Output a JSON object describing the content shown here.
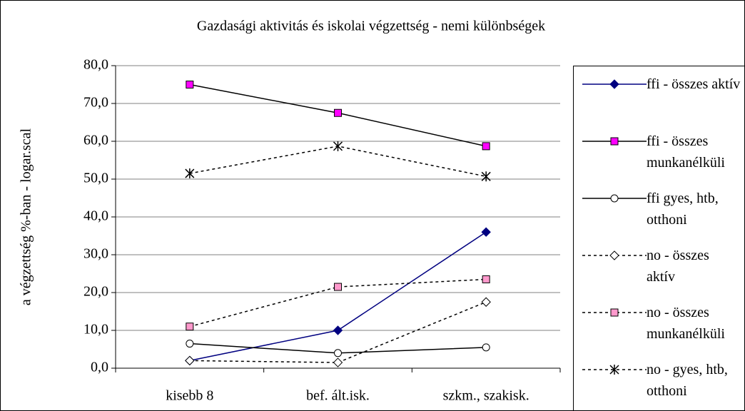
{
  "chart_data": {
    "type": "line",
    "title": "Gazdasági aktivitás és iskolai végzettség - nemi különbségek",
    "y_label": "a végzettség %-ban - logar.scal",
    "categories": [
      "kisebb 8",
      "bef. ált.isk.",
      "szkm., szakisk."
    ],
    "ylim": [
      0,
      80
    ],
    "yticks": [
      {
        "value": 0,
        "label": "0,0"
      },
      {
        "value": 10,
        "label": "10,0"
      },
      {
        "value": 20,
        "label": "20,0"
      },
      {
        "value": 30,
        "label": "30,0"
      },
      {
        "value": 40,
        "label": "40,0"
      },
      {
        "value": 50,
        "label": "50,0"
      },
      {
        "value": 60,
        "label": "60,0"
      },
      {
        "value": 70,
        "label": "70,0"
      },
      {
        "value": 80,
        "label": "80,0"
      }
    ],
    "grid": true,
    "legend": "right",
    "series": [
      {
        "name": "ffi - összes aktív",
        "color": "#000080",
        "dashed": false,
        "marker": "diamond",
        "marker_fill": "#000080",
        "values": [
          2.0,
          10.0,
          36.0
        ]
      },
      {
        "name": "ffi - összes munkanélküli",
        "color": "#000000",
        "dashed": false,
        "marker": "square",
        "marker_fill": "#ff00ff",
        "values": [
          75.0,
          67.5,
          58.7
        ]
      },
      {
        "name": "ffi gyes, htb, otthoni",
        "color": "#000000",
        "dashed": false,
        "marker": "circle",
        "marker_fill": "#ffffff",
        "values": [
          6.5,
          4.0,
          5.5
        ]
      },
      {
        "name": "no - összes aktív",
        "color": "#000000",
        "dashed": true,
        "marker": "diamond",
        "marker_fill": "#ffffff",
        "values": [
          2.0,
          1.5,
          17.5
        ]
      },
      {
        "name": "no - összes munkanélküli",
        "color": "#000000",
        "dashed": true,
        "marker": "square",
        "marker_fill": "#ff99cc",
        "values": [
          11.0,
          21.5,
          23.5
        ]
      },
      {
        "name": "no - gyes, htb, otthoni",
        "color": "#000000",
        "dashed": true,
        "marker": "star",
        "marker_fill": "#000000",
        "values": [
          51.5,
          58.7,
          50.7
        ]
      }
    ]
  }
}
